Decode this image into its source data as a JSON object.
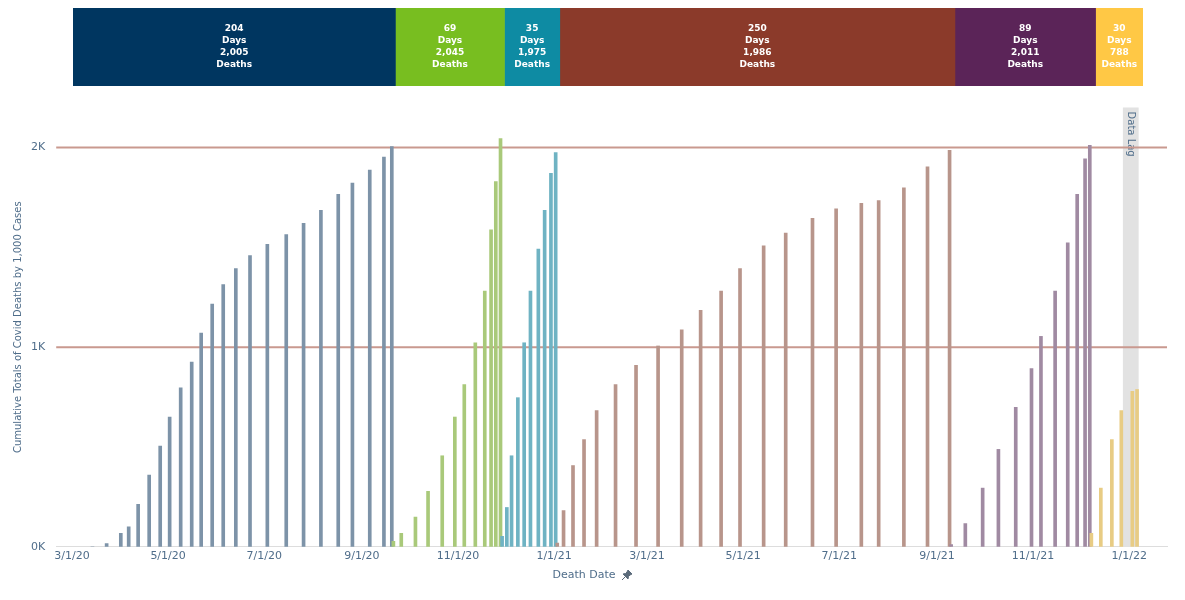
{
  "chart_data": [
    {
      "type": "bar",
      "orientation": "horizontal",
      "stacked": true,
      "categories": [
        null
      ],
      "series": [
        {
          "color": "#003660",
          "values": [
            204
          ],
          "value_labels": [
            "204\nDays\n2,005\nDeaths"
          ]
        },
        {
          "color": "#78be20",
          "values": [
            69
          ],
          "value_labels": [
            "69\nDays\n2,045\nDeaths"
          ]
        },
        {
          "color": "#0e8ba3",
          "values": [
            35
          ],
          "value_labels": [
            "35\nDays\n1,975\nDeaths"
          ]
        },
        {
          "color": "#8b3a2a",
          "values": [
            250
          ],
          "value_labels": [
            "250\nDays\n1,986\nDeaths"
          ]
        },
        {
          "color": "#5b2458",
          "values": [
            89
          ],
          "value_labels": [
            "89\nDays\n2,011\nDeaths"
          ]
        },
        {
          "color": "#ffc845",
          "values": [
            30
          ],
          "value_labels": [
            "30\nDays\n788\nDeaths"
          ]
        }
      ]
    },
    {
      "type": "bar",
      "xlabel": "Death Date",
      "ylabel": "Cumulative Totals of Covid Deaths by 1,000 Cases",
      "xlim": [
        "2020-02-20",
        "2022-01-25"
      ],
      "xticks": [
        {
          "value": "2020-03-01",
          "label": "3/1/20"
        },
        {
          "value": "2020-05-01",
          "label": "5/1/20"
        },
        {
          "value": "2020-07-01",
          "label": "7/1/20"
        },
        {
          "value": "2020-09-01",
          "label": "9/1/20"
        },
        {
          "value": "2020-11-01",
          "label": "11/1/20"
        },
        {
          "value": "2021-01-01",
          "label": "1/1/21"
        },
        {
          "value": "2021-03-01",
          "label": "3/1/21"
        },
        {
          "value": "2021-05-01",
          "label": "5/1/21"
        },
        {
          "value": "2021-07-01",
          "label": "7/1/21"
        },
        {
          "value": "2021-09-01",
          "label": "9/1/21"
        },
        {
          "value": "2021-11-01",
          "label": "11/1/21"
        },
        {
          "value": "2022-01-01",
          "label": "1/1/22"
        }
      ],
      "ylim": [
        0,
        2200
      ],
      "yticks": [
        {
          "value": 0,
          "label": "0K"
        },
        {
          "value": 1000,
          "label": "1K"
        },
        {
          "value": 2000,
          "label": "2K"
        }
      ],
      "ref_lines": [
        {
          "axis": "y",
          "value": 1000,
          "color": "#c9998f"
        },
        {
          "axis": "y",
          "value": 2000,
          "color": "#c9998f"
        }
      ],
      "bands": [
        {
          "axis": "x",
          "from": "2021-12-28",
          "to": "2022-01-07",
          "label": "Data Lag",
          "color": "#e2e2e2"
        }
      ],
      "series": [
        {
          "color": "#7d93a8",
          "x": [
            "2020-03-14",
            "2020-03-23",
            "2020-04-01",
            "2020-04-06",
            "2020-04-12",
            "2020-04-19",
            "2020-04-26",
            "2020-05-02",
            "2020-05-09",
            "2020-05-16",
            "2020-05-22",
            "2020-05-29",
            "2020-06-05",
            "2020-06-13",
            "2020-06-22",
            "2020-07-03",
            "2020-07-15",
            "2020-07-26",
            "2020-08-06",
            "2020-08-17",
            "2020-08-26",
            "2020-09-06",
            "2020-09-15",
            "2020-09-20"
          ],
          "values": [
            0,
            16,
            68,
            100,
            213,
            359,
            505,
            650,
            796,
            925,
            1070,
            1216,
            1313,
            1394,
            1459,
            1515,
            1564,
            1620,
            1685,
            1766,
            1822,
            1887,
            1952,
            2005
          ]
        },
        {
          "color": "#a9c97a",
          "x": [
            "2020-09-21",
            "2020-09-26",
            "2020-10-05",
            "2020-10-13",
            "2020-10-22",
            "2020-10-30",
            "2020-11-05",
            "2020-11-12",
            "2020-11-18",
            "2020-11-22",
            "2020-11-25",
            "2020-11-28"
          ],
          "values": [
            27,
            68,
            149,
            278,
            456,
            650,
            812,
            1022,
            1281,
            1588,
            1830,
            2045
          ]
        },
        {
          "color": "#6fb3c3",
          "x": [
            "2020-11-29",
            "2020-12-02",
            "2020-12-05",
            "2020-12-09",
            "2020-12-13",
            "2020-12-17",
            "2020-12-22",
            "2020-12-26",
            "2020-12-30",
            "2021-01-02"
          ],
          "values": [
            52,
            197,
            456,
            747,
            1022,
            1281,
            1491,
            1685,
            1871,
            1975
          ]
        },
        {
          "color": "#b8958b",
          "x": [
            "2021-01-03",
            "2021-01-07",
            "2021-01-13",
            "2021-01-20",
            "2021-01-28",
            "2021-02-09",
            "2021-02-22",
            "2021-03-08",
            "2021-03-23",
            "2021-04-04",
            "2021-04-17",
            "2021-04-29",
            "2021-05-14",
            "2021-05-28",
            "2021-06-14",
            "2021-06-29",
            "2021-07-15",
            "2021-07-26",
            "2021-08-11",
            "2021-08-26",
            "2021-09-09"
          ],
          "values": [
            19,
            181,
            407,
            537,
            682,
            812,
            909,
            1006,
            1087,
            1184,
            1281,
            1394,
            1507,
            1572,
            1645,
            1693,
            1721,
            1734,
            1798,
            1903,
            1986
          ]
        },
        {
          "color": "#a08aa2",
          "x": [
            "2021-09-10",
            "2021-09-19",
            "2021-09-30",
            "2021-10-10",
            "2021-10-21",
            "2021-10-31",
            "2021-11-06",
            "2021-11-15",
            "2021-11-23",
            "2021-11-29",
            "2021-12-04",
            "2021-12-07"
          ],
          "values": [
            11,
            116,
            294,
            488,
            698,
            893,
            1054,
            1281,
            1523,
            1766,
            1944,
            2011
          ]
        },
        {
          "color": "#e8cc84",
          "x": [
            "2021-12-08",
            "2021-12-14",
            "2021-12-21",
            "2021-12-27",
            "2022-01-03",
            "2022-01-06"
          ],
          "values": [
            68,
            294,
            537,
            682,
            779,
            788
          ]
        }
      ]
    }
  ]
}
